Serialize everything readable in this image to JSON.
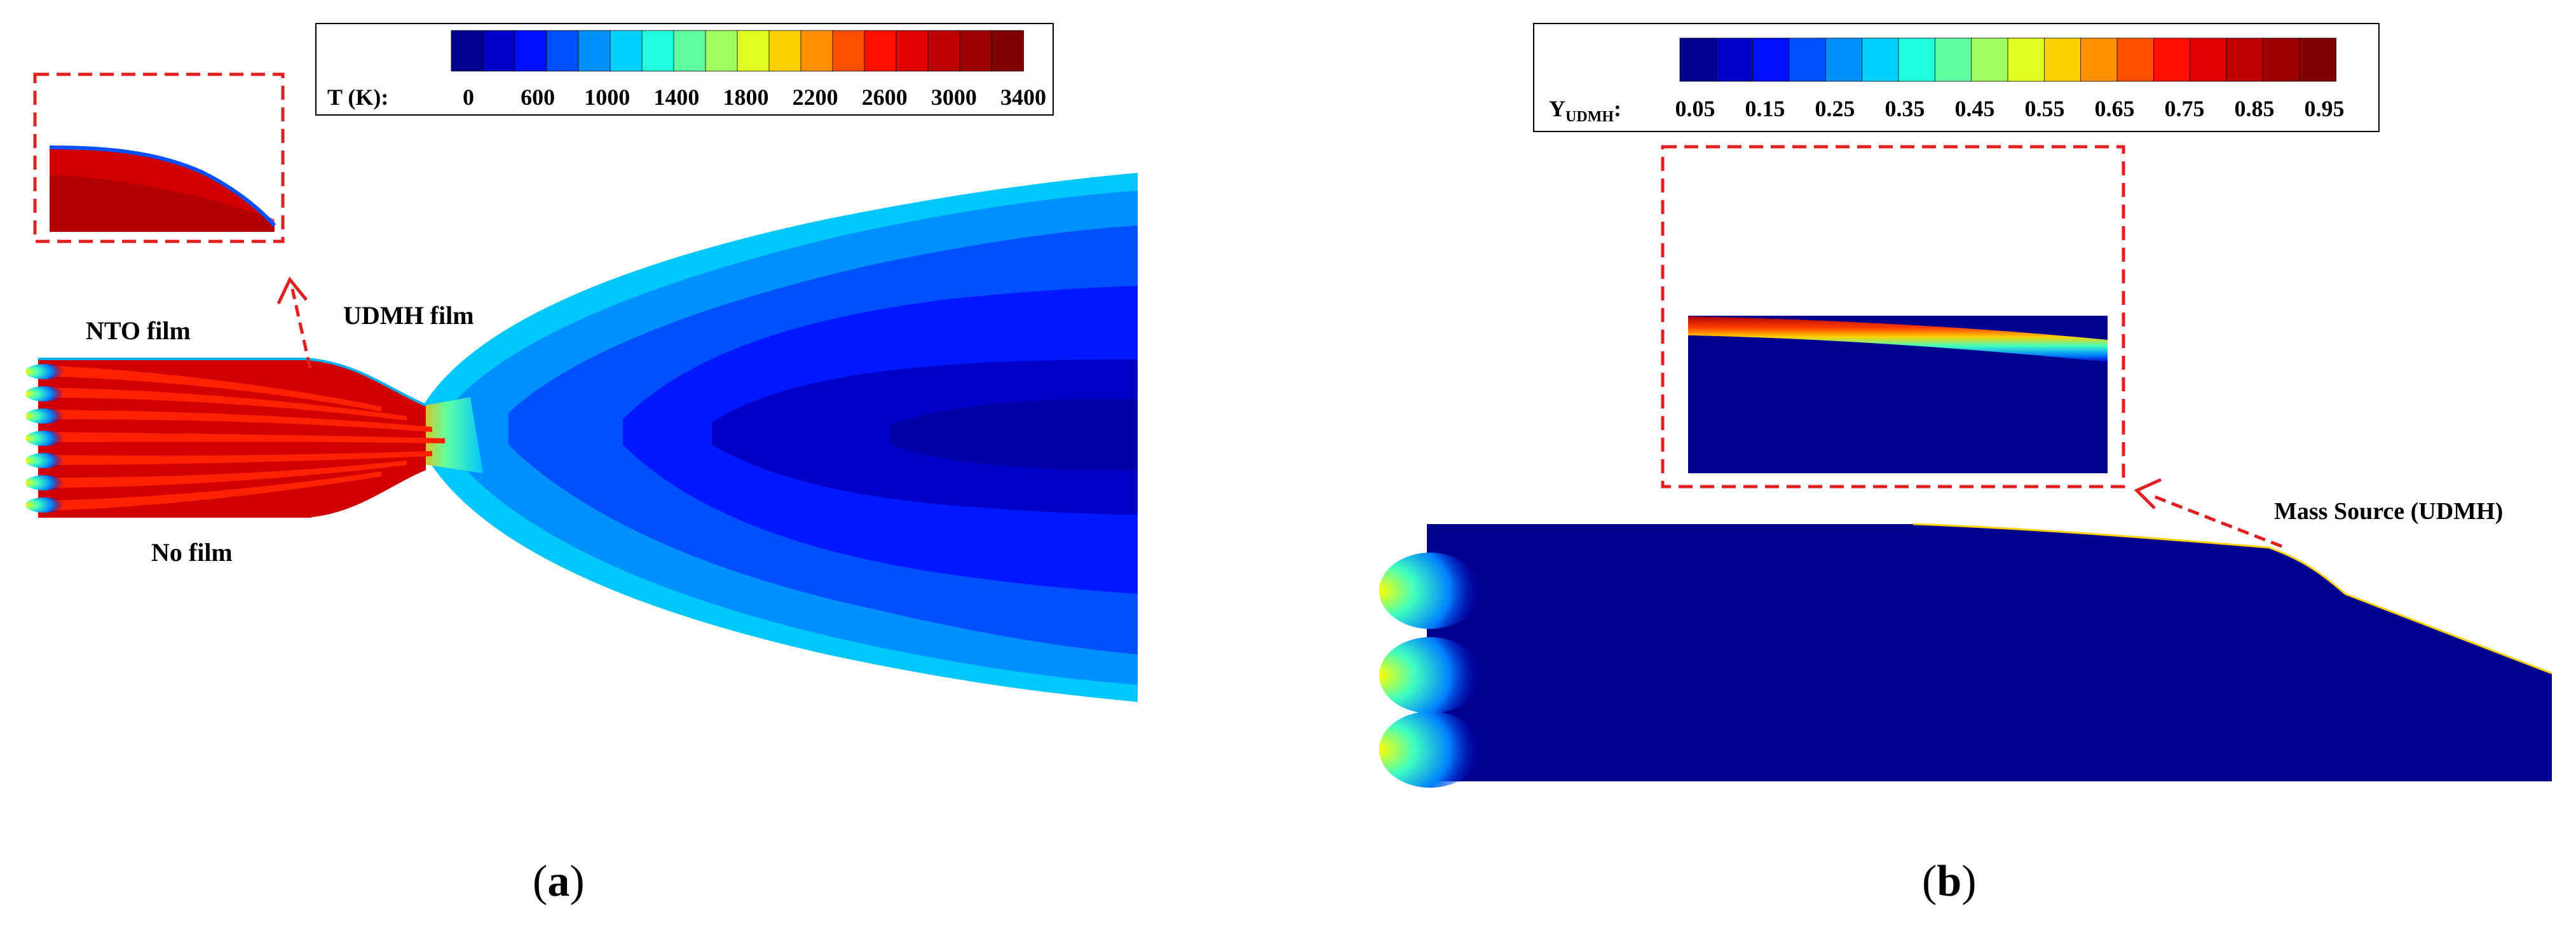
{
  "panel_a": {
    "colorbar": {
      "title": "T (K):",
      "ticks": [
        "0",
        "600",
        "1000",
        "1400",
        "1800",
        "2200",
        "2600",
        "3000",
        "3400"
      ],
      "colors": [
        "#00008f",
        "#0000c8",
        "#0010ff",
        "#0050ff",
        "#0090ff",
        "#00d0ff",
        "#20ffdf",
        "#60ff9f",
        "#9fff60",
        "#dfff20",
        "#ffd000",
        "#ff9000",
        "#ff5000",
        "#ff1000",
        "#e00000",
        "#bf0000",
        "#9f0000",
        "#800000"
      ]
    },
    "labels": {
      "nto_film": "NTO film",
      "udmh_film": "UDMH film",
      "no_film": "No film"
    },
    "caption": {
      "open": "(",
      "letter": "a",
      "close": ")"
    }
  },
  "panel_b": {
    "colorbar": {
      "title_main": "Y",
      "title_sub": "UDMH",
      "title_suffix": ":",
      "ticks": [
        "0.05",
        "0.15",
        "0.25",
        "0.35",
        "0.45",
        "0.55",
        "0.65",
        "0.75",
        "0.85",
        "0.95"
      ],
      "colors": [
        "#00008f",
        "#0000c8",
        "#0010ff",
        "#0050ff",
        "#0090ff",
        "#00d0ff",
        "#20ffdf",
        "#60ff9f",
        "#9fff60",
        "#dfff20",
        "#ffd000",
        "#ff9000",
        "#ff5000",
        "#ff1000",
        "#e00000",
        "#bf0000",
        "#9f0000",
        "#800000"
      ]
    },
    "labels": {
      "mass_source": "Mass Source (UDMH)"
    },
    "caption": {
      "open": "(",
      "letter": "b",
      "close": ")"
    }
  }
}
